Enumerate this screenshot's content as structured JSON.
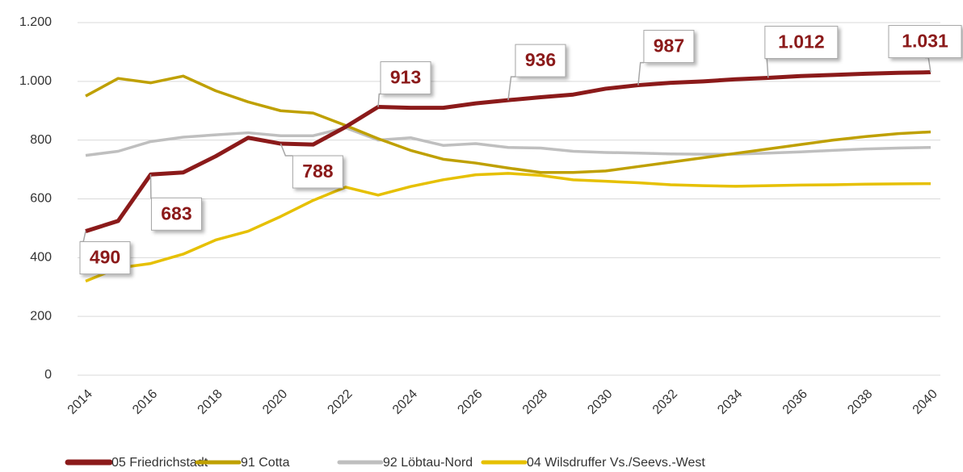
{
  "chart_data": {
    "type": "line",
    "x": [
      2014,
      2015,
      2016,
      2017,
      2018,
      2019,
      2020,
      2021,
      2022,
      2023,
      2024,
      2025,
      2026,
      2027,
      2028,
      2029,
      2030,
      2031,
      2032,
      2033,
      2034,
      2035,
      2036,
      2037,
      2038,
      2039,
      2040
    ],
    "xlim": [
      2014,
      2040
    ],
    "xticks": [
      2014,
      2016,
      2018,
      2020,
      2022,
      2024,
      2026,
      2028,
      2030,
      2032,
      2034,
      2036,
      2038,
      2040
    ],
    "ylim": [
      0,
      1200
    ],
    "yticks": [
      0,
      200,
      400,
      600,
      800,
      {
        "value": 1000,
        "label": "1.000"
      },
      {
        "value": 1200,
        "label": "1.200"
      }
    ],
    "grid": true,
    "legend": "bottom",
    "series": [
      {
        "name": "05 Friedrichstadt",
        "color": "#8b1a1a",
        "width": 5,
        "values": [
          490,
          525,
          683,
          690,
          745,
          808,
          788,
          785,
          845,
          913,
          910,
          910,
          925,
          936,
          946,
          955,
          975,
          987,
          995,
          1000,
          1007,
          1012,
          1018,
          1022,
          1026,
          1029,
          1031
        ],
        "value_labels": [
          "490",
          null,
          "683",
          null,
          null,
          null,
          "788",
          null,
          null,
          "913",
          null,
          null,
          null,
          "936",
          null,
          null,
          null,
          "987",
          null,
          null,
          null,
          "1.012",
          null,
          null,
          null,
          null,
          "1.031"
        ]
      },
      {
        "name": "91 Cotta",
        "color": "#bfa000",
        "width": 3.5,
        "values": [
          950,
          1010,
          995,
          1018,
          968,
          930,
          900,
          892,
          850,
          805,
          765,
          735,
          722,
          705,
          690,
          690,
          695,
          710,
          725,
          740,
          755,
          770,
          785,
          800,
          812,
          822,
          828
        ]
      },
      {
        "name": "92 Löbtau-Nord",
        "color": "#bfbfbf",
        "width": 3.5,
        "values": [
          748,
          762,
          795,
          810,
          818,
          825,
          815,
          815,
          842,
          800,
          808,
          782,
          788,
          775,
          773,
          762,
          758,
          756,
          753,
          752,
          752,
          756,
          760,
          765,
          770,
          773,
          775
        ]
      },
      {
        "name": "04 Wilsdruffer Vs./Seevs.-West",
        "color": "#e6c000",
        "width": 3.5,
        "values": [
          320,
          365,
          380,
          412,
          460,
          490,
          540,
          595,
          640,
          613,
          642,
          665,
          682,
          687,
          680,
          665,
          660,
          655,
          648,
          645,
          643,
          645,
          647,
          648,
          650,
          651,
          652
        ]
      }
    ]
  }
}
